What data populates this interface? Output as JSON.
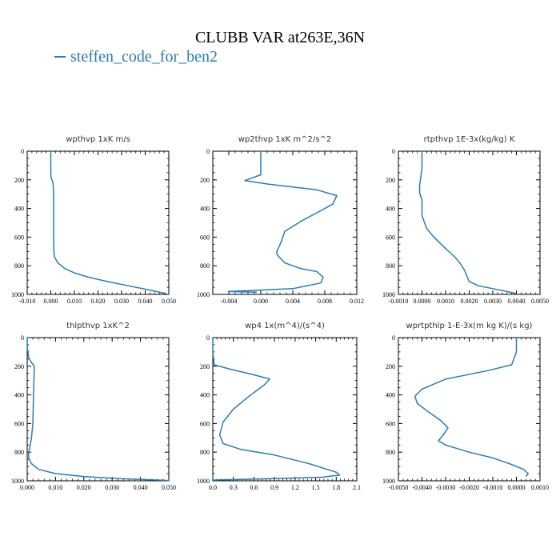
{
  "title": "CLUBB VAR at263E,36N",
  "legend": {
    "label": "steffen_code_for_ben2",
    "color": "#2b7bb4"
  },
  "chart_data": [
    {
      "type": "line",
      "title": "wpthvp  1xK m/s",
      "xlim": [
        -0.01,
        0.05
      ],
      "xticks": [
        "-0.010",
        "0.000",
        "0.010",
        "0.020",
        "0.030",
        "0.040",
        "0.050"
      ],
      "ylim": [
        1000,
        0
      ],
      "yticks": [
        "0",
        "200",
        "400",
        "600",
        "800",
        "1000"
      ],
      "series": [
        {
          "x": [
            0.0,
            0.0,
            0.0,
            0.0,
            0.0002,
            0.001,
            0.0012,
            0.0012,
            0.0012,
            0.0012,
            0.0013,
            0.0016,
            0.003,
            0.006,
            0.01,
            0.016,
            0.024,
            0.033,
            0.042,
            0.049
          ],
          "y": [
            0,
            40,
            100,
            160,
            190,
            220,
            300,
            400,
            500,
            600,
            700,
            740,
            780,
            820,
            850,
            880,
            910,
            940,
            970,
            995
          ]
        }
      ]
    },
    {
      "type": "line",
      "title": "wp2thvp  1xK m^2/s^2",
      "xlim": [
        -0.006,
        0.012
      ],
      "xticks": [
        "-0.004",
        "0.000",
        "0.004",
        "0.008",
        "0.012"
      ],
      "ylim": [
        1000,
        0
      ],
      "yticks": [
        "0",
        "200",
        "400",
        "600",
        "800",
        "1000"
      ],
      "series": [
        {
          "x": [
            0.0,
            0.0,
            0.0,
            -0.002,
            0.001,
            0.007,
            0.0095,
            0.009,
            0.007,
            0.005,
            0.003,
            0.0025,
            0.002,
            0.002,
            0.003,
            0.005,
            0.007,
            0.0078,
            0.0075,
            0.004,
            -0.004,
            -0.0005
          ],
          "y": [
            0,
            80,
            165,
            205,
            230,
            270,
            310,
            370,
            430,
            490,
            560,
            640,
            700,
            720,
            780,
            820,
            840,
            880,
            920,
            960,
            980,
            985
          ]
        }
      ]
    },
    {
      "type": "line",
      "title": "rtpthvp  1E-3x(kg/kg) K",
      "xlim": [
        -0.001,
        0.005
      ],
      "xticks": [
        "-0.0010",
        "0.0000",
        "0.0010",
        "0.0020",
        "0.0030",
        "0.0040",
        "0.0050"
      ],
      "ylim": [
        1000,
        0
      ],
      "yticks": [
        "0",
        "200",
        "400",
        "600",
        "800",
        "1000"
      ],
      "series": [
        {
          "x": [
            0.0,
            0.0,
            -0.0001,
            -0.0001,
            0.0,
            0.0,
            0.0002,
            0.0005,
            0.001,
            0.0014,
            0.0016,
            0.0018,
            0.0019,
            0.002,
            0.0024,
            0.003,
            0.0036,
            0.004
          ],
          "y": [
            0,
            120,
            240,
            290,
            340,
            450,
            540,
            600,
            680,
            740,
            780,
            830,
            870,
            910,
            940,
            960,
            980,
            995
          ]
        }
      ]
    },
    {
      "type": "line",
      "title": "thlpthvp  1xK^2",
      "xlim": [
        0.0,
        0.05
      ],
      "xticks": [
        "0.000",
        "0.010",
        "0.020",
        "0.030",
        "0.040",
        "0.050"
      ],
      "ylim": [
        1000,
        0
      ],
      "yticks": [
        "0",
        "200",
        "400",
        "600",
        "800",
        "1000"
      ],
      "series": [
        {
          "x": [
            0.0,
            0.0,
            0.0005,
            0.0012,
            0.0025,
            0.0022,
            0.002,
            0.0015,
            0.001,
            0.0005,
            0.0005,
            0.0015,
            0.004,
            0.01,
            0.02,
            0.032,
            0.044,
            0.05
          ],
          "y": [
            0,
            60,
            140,
            165,
            200,
            400,
            600,
            700,
            760,
            800,
            840,
            880,
            920,
            950,
            970,
            985,
            993,
            998
          ]
        }
      ]
    },
    {
      "type": "line",
      "title": "wp4  1x(m^4)/(s^4)",
      "xlim": [
        0.0,
        2.1
      ],
      "xticks": [
        "0.0",
        "0.3",
        "0.6",
        "0.9",
        "1.2",
        "1.5",
        "1.8",
        "2.1"
      ],
      "ylim": [
        1000,
        0
      ],
      "yticks": [
        "0",
        "200",
        "400",
        "600",
        "800",
        "1000"
      ],
      "series": [
        {
          "x": [
            0.0,
            0.0,
            0.02,
            0.25,
            0.6,
            0.83,
            0.75,
            0.5,
            0.3,
            0.15,
            0.1,
            0.15,
            0.4,
            0.9,
            1.4,
            1.8,
            1.85,
            1.6,
            0.9,
            0.2,
            0.0
          ],
          "y": [
            0,
            100,
            190,
            220,
            260,
            290,
            330,
            420,
            500,
            590,
            680,
            740,
            780,
            820,
            880,
            940,
            960,
            975,
            985,
            992,
            995
          ]
        }
      ]
    },
    {
      "type": "line",
      "title": "wprtpthlp  1-E-3x(m kg K)/(s kg)",
      "xlim": [
        -0.005,
        0.001
      ],
      "xticks": [
        "-0.0050",
        "-0.0040",
        "-0.0030",
        "-0.0020",
        "-0.0010",
        "0.0000",
        "0.0010"
      ],
      "ylim": [
        1000,
        0
      ],
      "yticks": [
        "0",
        "200",
        "400",
        "600",
        "800",
        "1000"
      ],
      "series": [
        {
          "x": [
            0.0,
            0.0,
            -0.0002,
            -0.0012,
            -0.003,
            -0.004,
            -0.0043,
            -0.0042,
            -0.0038,
            -0.0032,
            -0.0029,
            -0.0031,
            -0.0033,
            -0.003,
            -0.002,
            -0.001,
            -0.0003,
            0.0003,
            0.0005,
            0.0004
          ],
          "y": [
            0,
            100,
            190,
            230,
            290,
            360,
            410,
            460,
            510,
            580,
            630,
            680,
            720,
            750,
            800,
            840,
            880,
            920,
            950,
            970
          ]
        }
      ]
    }
  ]
}
